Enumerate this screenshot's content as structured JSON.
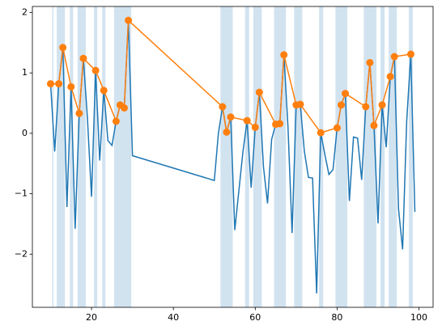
{
  "chart_data": {
    "type": "line",
    "xlim": [
      5.55,
      103.45
    ],
    "ylim": [
      -2.88,
      2.1
    ],
    "xticks": [
      20,
      40,
      60,
      80,
      100
    ],
    "yticks": [
      {
        "value": -2,
        "label": "−2"
      },
      {
        "value": -1,
        "label": "−1"
      },
      0,
      1,
      2
    ],
    "spans": [
      [
        10.4,
        10.7
      ],
      [
        11.5,
        13.5
      ],
      [
        14.7,
        15.5
      ],
      [
        16.6,
        18.6
      ],
      [
        20.6,
        21.4
      ],
      [
        22.6,
        23.4
      ],
      [
        25.5,
        29.7
      ],
      [
        51.5,
        54.5
      ],
      [
        57.5,
        58.5
      ],
      [
        59.5,
        61.6
      ],
      [
        64.6,
        67.5
      ],
      [
        69.5,
        71.5
      ],
      [
        75.6,
        76.6
      ],
      [
        79.6,
        82.5
      ],
      [
        86.5,
        89.6
      ],
      [
        90.6,
        91.6
      ],
      [
        92.6,
        94.6
      ],
      [
        97.5,
        98.5
      ]
    ],
    "span_color": "#d2e3f0",
    "series": [
      {
        "color": "#1f77b4",
        "markers": false,
        "x": [
          10,
          11,
          12,
          13,
          14,
          15,
          16,
          17,
          18,
          19,
          20,
          21,
          22,
          23,
          24,
          25,
          26,
          27,
          28,
          29,
          30,
          50,
          51,
          52,
          53,
          54,
          55,
          56,
          57,
          58,
          59,
          60,
          61,
          62,
          63,
          64,
          65,
          66,
          67,
          68,
          69,
          70,
          71,
          72,
          73,
          74,
          75,
          76,
          77,
          78,
          79,
          80,
          81,
          82,
          83,
          84,
          85,
          86,
          87,
          88,
          89,
          90,
          91,
          92,
          93,
          94,
          95,
          96,
          97,
          98,
          99
        ],
        "values": [
          0.82,
          -0.3,
          0.82,
          1.42,
          -1.22,
          0.77,
          -1.58,
          0.33,
          1.24,
          0.25,
          -1.05,
          1.04,
          -0.45,
          0.71,
          -0.12,
          -0.2,
          0.2,
          0.47,
          0.42,
          1.87,
          -0.37,
          -0.78,
          0.0,
          0.44,
          0.02,
          0.27,
          -1.6,
          -0.95,
          -0.3,
          0.21,
          -0.9,
          0.1,
          0.68,
          -0.55,
          -1.16,
          -0.1,
          0.15,
          0.16,
          1.3,
          0.1,
          -1.65,
          0.47,
          0.48,
          -0.3,
          -0.73,
          -0.74,
          -2.65,
          0.01,
          -0.35,
          -0.68,
          -0.6,
          0.09,
          0.47,
          0.66,
          -1.12,
          -0.06,
          -0.08,
          -0.77,
          0.44,
          1.17,
          0.13,
          -1.49,
          0.47,
          -0.23,
          0.94,
          1.27,
          -1.25,
          -1.92,
          0.2,
          1.31,
          -1.3
        ]
      },
      {
        "color": "#ff7f0e",
        "markers": true,
        "x": [
          10,
          12,
          13,
          15,
          17,
          18,
          21,
          23,
          26,
          27,
          28,
          29,
          52,
          53,
          54,
          58,
          60,
          61,
          65,
          66,
          67,
          70,
          71,
          76,
          80,
          81,
          82,
          87,
          88,
          89,
          91,
          93,
          94,
          98
        ],
        "values": [
          0.82,
          0.82,
          1.42,
          0.77,
          0.33,
          1.24,
          1.04,
          0.71,
          0.2,
          0.47,
          0.42,
          1.87,
          0.44,
          0.02,
          0.27,
          0.21,
          0.1,
          0.68,
          0.15,
          0.16,
          1.3,
          0.47,
          0.48,
          0.01,
          0.09,
          0.47,
          0.66,
          0.44,
          1.17,
          0.13,
          0.47,
          0.94,
          1.27,
          1.31
        ]
      }
    ]
  }
}
